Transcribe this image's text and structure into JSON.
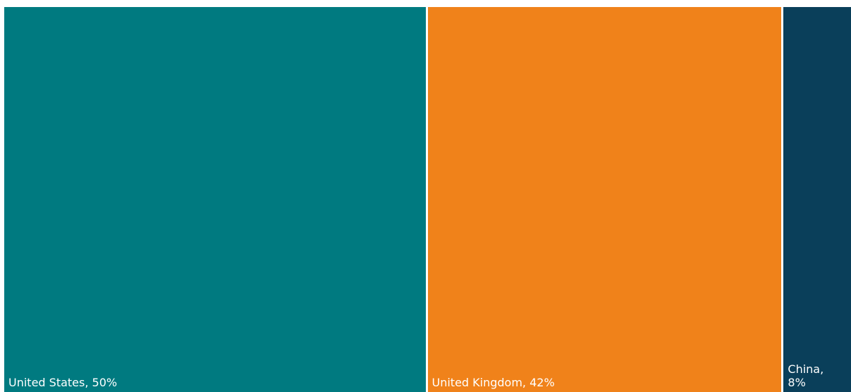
{
  "chart_data": {
    "type": "treemap",
    "values": [
      50,
      42,
      8
    ],
    "value_labels": [
      "United States, 50%",
      "United Kingdom, 42%",
      "China, 8%"
    ],
    "colors": [
      "#007a80",
      "#f0821a",
      "#0a3f5a"
    ]
  }
}
